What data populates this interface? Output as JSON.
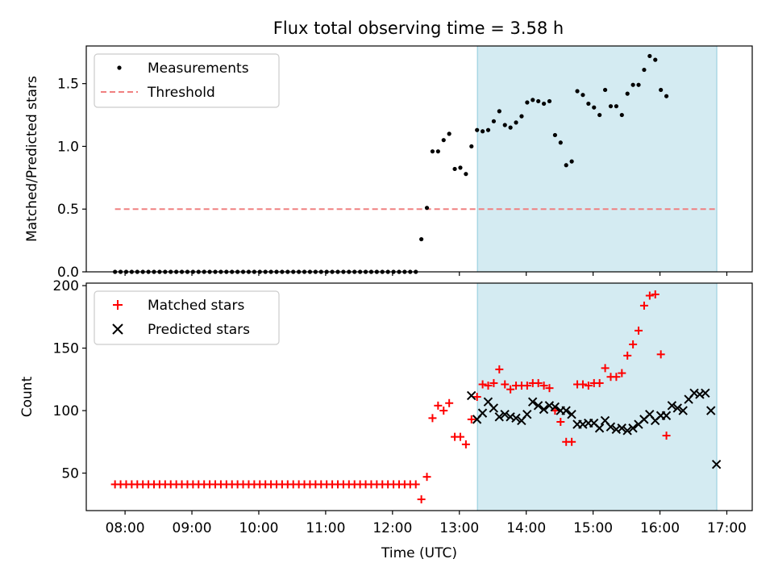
{
  "title": "Flux total observing time = 3.58 h",
  "colors": {
    "measurement": "#000000",
    "threshold": "#f08080",
    "matched": "#ff0000",
    "predicted": "#000000",
    "shade": "#add8e6"
  },
  "chart_data": [
    {
      "type": "scatter",
      "ylabel": "Matched/Predicted stars",
      "ylim": [
        0,
        1.8
      ],
      "yticks": [
        0.0,
        0.5,
        1.0,
        1.5
      ],
      "ytick_labels": [
        "0.0",
        "0.5",
        "1.0",
        "1.5"
      ],
      "legend": {
        "placement": "upper-left",
        "entries": [
          "Measurements",
          "Threshold"
        ]
      },
      "threshold": {
        "value": 0.5,
        "x_start": 7.85,
        "x_end": 16.85
      },
      "shaded_span": [
        13.27,
        16.85
      ],
      "series": [
        {
          "name": "Measurements",
          "x_start": 7.85,
          "x_step": 0.0833,
          "values": [
            0,
            0,
            0,
            0,
            0,
            0,
            0,
            0,
            0,
            0,
            0,
            0,
            0,
            0,
            0,
            0,
            0,
            0,
            0,
            0,
            0,
            0,
            0,
            0,
            0,
            0,
            0,
            0,
            0,
            0,
            0,
            0,
            0,
            0,
            0,
            0,
            0,
            0,
            0,
            0,
            0,
            0,
            0,
            0,
            0,
            0,
            0,
            0,
            0,
            0,
            0,
            0,
            0,
            0,
            0,
            0.26,
            0.51,
            0.96,
            0.96,
            1.05,
            1.1,
            0.82,
            0.83,
            0.78,
            1.0,
            1.13,
            1.12,
            1.13,
            1.2,
            1.28,
            1.17,
            1.15,
            1.19,
            1.24,
            1.35,
            1.37,
            1.36,
            1.34,
            1.36,
            1.09,
            1.03,
            0.85,
            0.88,
            1.44,
            1.41,
            1.34,
            1.31,
            1.25,
            1.45,
            1.32,
            1.32,
            1.25,
            1.42,
            1.49,
            1.49,
            1.61,
            1.72,
            1.69,
            1.45,
            1.4
          ]
        }
      ]
    },
    {
      "type": "scatter",
      "xlabel": "Time (UTC)",
      "ylabel": "Count",
      "xlim": [
        7.42,
        17.38
      ],
      "ylim": [
        20,
        202
      ],
      "xticks": [
        8,
        9,
        10,
        11,
        12,
        13,
        14,
        15,
        16,
        17
      ],
      "xtick_labels": [
        "08:00",
        "09:00",
        "10:00",
        "11:00",
        "12:00",
        "13:00",
        "14:00",
        "15:00",
        "16:00",
        "17:00"
      ],
      "yticks": [
        50,
        100,
        150,
        200
      ],
      "ytick_labels": [
        "50",
        "100",
        "150",
        "200"
      ],
      "legend": {
        "placement": "upper-left",
        "entries": [
          "Matched stars",
          "Predicted stars"
        ]
      },
      "shaded_span": [
        13.27,
        16.85
      ],
      "series": [
        {
          "name": "Matched stars",
          "marker": "+",
          "x_start": 7.85,
          "x_step": 0.0833,
          "values": [
            41,
            41,
            41,
            41,
            41,
            41,
            41,
            41,
            41,
            41,
            41,
            41,
            41,
            41,
            41,
            41,
            41,
            41,
            41,
            41,
            41,
            41,
            41,
            41,
            41,
            41,
            41,
            41,
            41,
            41,
            41,
            41,
            41,
            41,
            41,
            41,
            41,
            41,
            41,
            41,
            41,
            41,
            41,
            41,
            41,
            41,
            41,
            41,
            41,
            41,
            41,
            41,
            41,
            41,
            41,
            29,
            47,
            94,
            104,
            100,
            106,
            79,
            79,
            73,
            93,
            111,
            121,
            120,
            122,
            133,
            121,
            117,
            120,
            120,
            120,
            122,
            122,
            120,
            118,
            100,
            91,
            75,
            75,
            121,
            121,
            120,
            122,
            122,
            134,
            127,
            127,
            130,
            144,
            153,
            164,
            184,
            192,
            193,
            145,
            80
          ]
        },
        {
          "name": "Predicted stars",
          "marker": "x",
          "x_start": 13.18,
          "x_step": 0.0833,
          "values": [
            112,
            93,
            98,
            107,
            102,
            95,
            97,
            95,
            94,
            92,
            97,
            107,
            104,
            101,
            104,
            103,
            100,
            100,
            97,
            89,
            89,
            90,
            90,
            86,
            92,
            87,
            85,
            86,
            84,
            86,
            89,
            93,
            97,
            92,
            96,
            96,
            104,
            102,
            100,
            109,
            114,
            113,
            114,
            100,
            57
          ]
        }
      ]
    }
  ]
}
